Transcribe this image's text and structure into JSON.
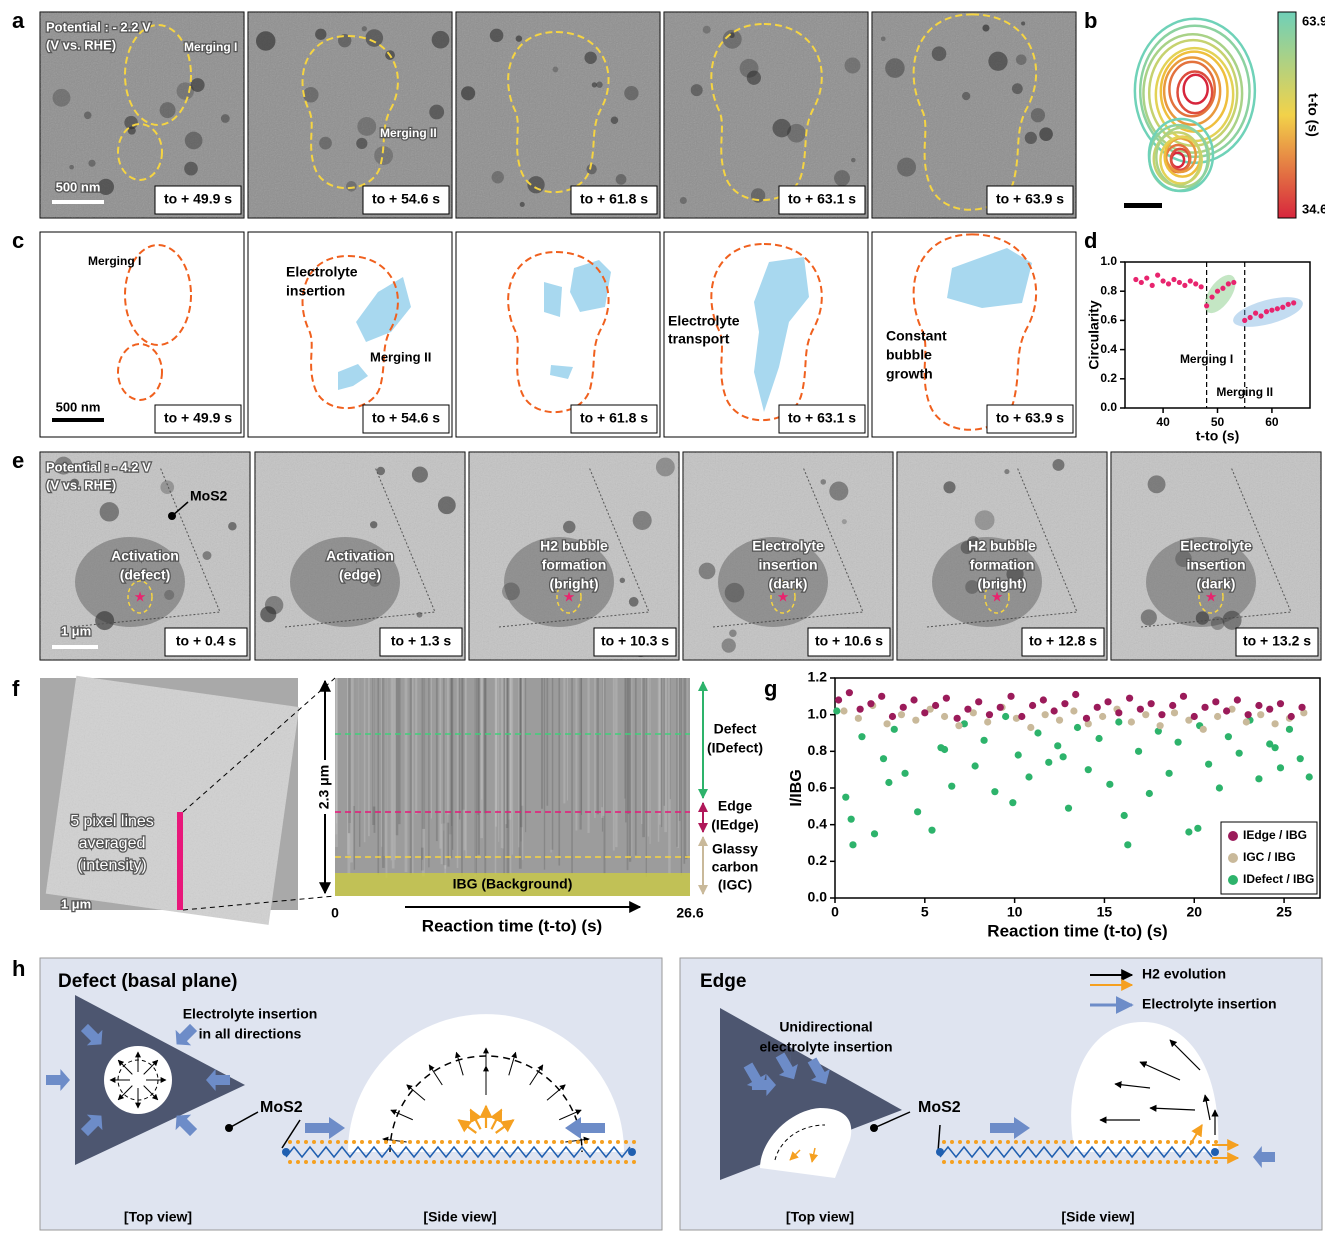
{
  "panel_letters": [
    "a",
    "b",
    "c",
    "d",
    "e",
    "f",
    "g",
    "h"
  ],
  "row_a": {
    "potential": [
      "Potential : - 2.2 V",
      "(V vs. RHE)"
    ],
    "merging_1": "Merging I",
    "merging_2": "Merging II",
    "scale_bar": "500 nm",
    "times": [
      "to + 49.9 s",
      "to + 54.6 s",
      "to + 61.8 s",
      "to + 63.1 s",
      "to + 63.9 s"
    ]
  },
  "panel_b": {
    "colorbar_max": 63.9,
    "colorbar_min": 34.6,
    "colorbar_label": "t-to (s)"
  },
  "row_c": {
    "merging_1": "Merging I",
    "insertion": [
      "Electrolyte",
      "insertion"
    ],
    "merging_2": "Merging II",
    "transport": [
      "Electrolyte",
      "transport"
    ],
    "growth": [
      "Constant",
      "bubble",
      "growth"
    ],
    "scale_bar": "500 nm",
    "times": [
      "to + 49.9 s",
      "to + 54.6 s",
      "to + 61.8 s",
      "to + 63.1 s",
      "to + 63.9 s"
    ]
  },
  "row_e": {
    "potential": [
      "Potential : - 4.2 V",
      "(V vs. RHE)"
    ],
    "mos2": "MoS2",
    "scale_bar": "1 μm",
    "labels": [
      [
        "Activation",
        "(defect)"
      ],
      [
        "Activation",
        "(edge)"
      ],
      [
        "H2 bubble",
        "formation",
        "(bright)"
      ],
      [
        "Electrolyte",
        "insertion",
        "(dark)"
      ],
      [
        "H2 bubble",
        "formation",
        "(bright)"
      ],
      [
        "Electrolyte",
        "insertion",
        "(dark)"
      ]
    ],
    "times": [
      "to + 0.4 s",
      "to + 1.3 s",
      "to + 10.3 s",
      "to + 10.6 s",
      "to + 12.8 s",
      "to + 13.2 s"
    ]
  },
  "panel_f": {
    "image_label": [
      "5 pixel lines",
      "averaged",
      "(intensity)"
    ],
    "scale_bar": "1 μm",
    "height_label": "2.3 μm",
    "xlim": [
      0,
      26.6
    ],
    "xlabel": "Reaction time (t-to) (s)",
    "background": "IBG (Background)",
    "defect": [
      "Defect",
      "(IDefect)"
    ],
    "edge": [
      "Edge",
      "(IEdge)"
    ],
    "gc": [
      "Glassy",
      "carbon",
      "(IGC)"
    ]
  },
  "panel_h": {
    "left_title": "Defect (basal plane)",
    "left_note": [
      "Electrolyte insertion",
      "in all directions"
    ],
    "left_mos2": "MoS2",
    "left_top": "[Top view]",
    "left_side": "[Side view]",
    "right_title": "Edge",
    "right_note": [
      "Unidirectional",
      "electrolyte insertion"
    ],
    "right_mos2": "MoS2",
    "right_top": "[Top view]",
    "right_side": "[Side view]",
    "legend": [
      "H2 evolution",
      "Electrolyte insertion"
    ]
  },
  "chart_data": [
    {
      "type": "scatter",
      "xlabel": "t-to (s)",
      "ylabel": "Circularity",
      "x": [
        35,
        36,
        37,
        38,
        39,
        40,
        41,
        42,
        43,
        44,
        45,
        46,
        47,
        48,
        49,
        50,
        51,
        52,
        53,
        55,
        56,
        57,
        58,
        59,
        60,
        61,
        62,
        63,
        64
      ],
      "values": [
        0.88,
        0.86,
        0.89,
        0.84,
        0.91,
        0.87,
        0.85,
        0.88,
        0.86,
        0.84,
        0.87,
        0.85,
        0.83,
        0.7,
        0.76,
        0.8,
        0.82,
        0.85,
        0.86,
        0.6,
        0.62,
        0.65,
        0.63,
        0.66,
        0.67,
        0.68,
        0.69,
        0.71,
        0.72
      ],
      "color": "#e8246e",
      "xlim": [
        33,
        67
      ],
      "ylim": [
        0,
        1
      ],
      "xticks": [
        40,
        50,
        60
      ],
      "yticks": [
        {
          "value": 0,
          "label": "0.0"
        },
        0.2,
        0.4,
        0.6,
        0.8,
        {
          "value": 1,
          "label": "1.0"
        }
      ],
      "vlines": [
        {
          "x": 48,
          "label": "Merging I"
        },
        {
          "x": 55,
          "label": "Merging II"
        }
      ]
    },
    {
      "type": "scatter",
      "xlabel": "Reaction time (t-to) (s)",
      "ylabel": "I/IBG",
      "xlim": [
        0,
        27
      ],
      "ylim": [
        0,
        1.2
      ],
      "xticks": [
        0,
        5,
        10,
        15,
        20,
        25
      ],
      "yticks": [
        {
          "value": 0,
          "label": "0.0"
        },
        0.2,
        0.4,
        0.6,
        0.8,
        {
          "value": 1,
          "label": "1.0"
        },
        1.2
      ],
      "legend": "lower right",
      "series": [
        {
          "name": "IEdge / IBG",
          "color": "#9b1b5a",
          "x": [
            0.2,
            0.8,
            1.4,
            2.0,
            2.6,
            3.2,
            3.8,
            4.4,
            5.0,
            5.6,
            6.2,
            6.8,
            7.4,
            8.0,
            8.6,
            9.2,
            9.8,
            10.4,
            11.0,
            11.6,
            12.2,
            12.8,
            13.4,
            14.0,
            14.6,
            15.2,
            15.8,
            16.4,
            17.0,
            17.6,
            18.2,
            18.8,
            19.4,
            20.0,
            20.6,
            21.2,
            21.8,
            22.4,
            23.0,
            23.6,
            24.2,
            24.8,
            25.4,
            26.0
          ],
          "values": [
            1.08,
            1.12,
            1.03,
            1.06,
            1.1,
            0.99,
            1.04,
            1.08,
            1.01,
            1.05,
            1.09,
            0.98,
            1.03,
            1.07,
            1.0,
            1.04,
            1.1,
            0.99,
            1.05,
            1.08,
            1.02,
            1.06,
            1.11,
            0.98,
            1.04,
            1.07,
            1.01,
            1.09,
            1.03,
            1.06,
            1.0,
            1.05,
            1.1,
            0.99,
            1.04,
            1.07,
            1.02,
            1.08,
            1.0,
            1.05,
            1.03,
            1.06,
            0.99,
            1.04
          ]
        },
        {
          "name": "IGC / IBG",
          "color": "#c9b99a",
          "x": [
            0.5,
            1.3,
            2.1,
            2.9,
            3.7,
            4.5,
            5.3,
            6.1,
            6.9,
            7.7,
            8.5,
            9.3,
            10.1,
            10.9,
            11.7,
            12.5,
            13.3,
            14.1,
            14.9,
            15.7,
            16.5,
            17.3,
            18.1,
            18.9,
            19.7,
            20.5,
            21.3,
            22.1,
            22.9,
            23.7,
            24.5,
            25.3,
            26.1
          ],
          "values": [
            1.02,
            0.98,
            1.05,
            0.95,
            1.0,
            0.97,
            1.03,
            0.99,
            0.94,
            1.01,
            0.96,
            1.04,
            0.98,
            0.93,
            1.0,
            0.97,
            1.02,
            0.95,
            0.99,
            1.03,
            0.96,
            1.0,
            0.94,
            1.01,
            0.97,
            0.92,
            0.99,
            1.03,
            0.96,
            1.0,
            0.95,
            0.98,
            1.01
          ]
        },
        {
          "name": "IDefect / IBG",
          "color": "#2db36b",
          "x": [
            0.1,
            0.6,
            1.0,
            1.5,
            2.2,
            2.7,
            3.3,
            3.9,
            4.6,
            5.4,
            5.9,
            6.5,
            7.2,
            7.8,
            8.3,
            8.9,
            9.5,
            10.2,
            10.8,
            11.3,
            11.9,
            12.4,
            13.0,
            13.5,
            14.1,
            14.7,
            15.3,
            15.8,
            16.3,
            16.9,
            17.5,
            18.0,
            18.6,
            19.1,
            19.7,
            20.3,
            20.8,
            21.4,
            21.9,
            22.5,
            23.1,
            23.6,
            24.2,
            24.8,
            25.3,
            25.9,
            26.4,
            0.9,
            3.0,
            6.1,
            9.9,
            12.7,
            16.1,
            20.2,
            24.5
          ],
          "values": [
            1.02,
            0.55,
            0.29,
            0.88,
            0.35,
            0.76,
            0.92,
            0.68,
            0.47,
            0.37,
            0.82,
            0.61,
            0.95,
            0.72,
            0.86,
            0.58,
            0.99,
            0.78,
            0.66,
            0.9,
            0.74,
            0.83,
            0.49,
            0.93,
            0.7,
            0.87,
            0.62,
            0.96,
            0.29,
            0.8,
            0.57,
            0.91,
            0.68,
            0.85,
            0.36,
            0.94,
            0.73,
            0.6,
            0.88,
            0.79,
            0.97,
            0.65,
            0.84,
            0.71,
            0.92,
            0.76,
            0.66,
            0.43,
            0.63,
            0.81,
            0.52,
            0.77,
            0.45,
            0.38,
            0.82
          ]
        }
      ]
    }
  ]
}
